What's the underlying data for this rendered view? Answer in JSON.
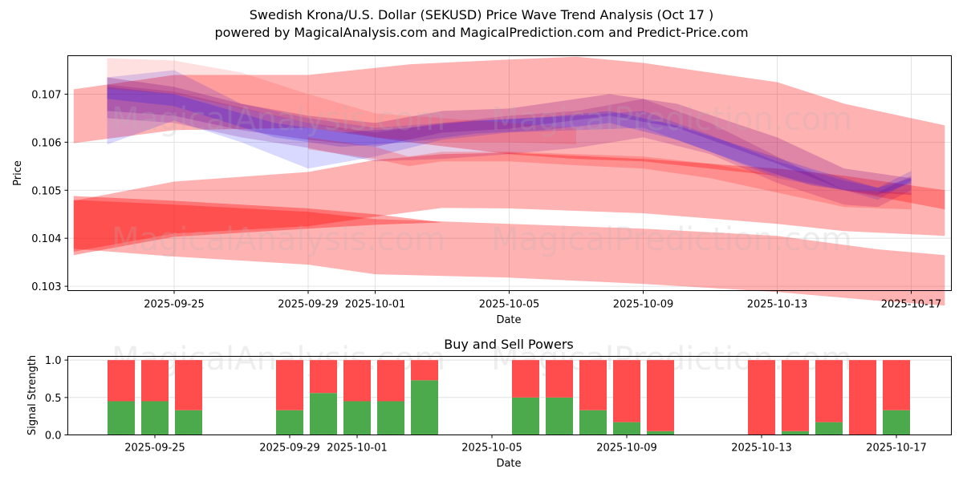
{
  "header": {
    "title": "Swedish Krona/U.S. Dollar (SEKUSD) Price Wave Trend Analysis (Oct 17 )",
    "subtitle": "powered by MagicalAnalysis.com and MagicalPrediction.com and Predict-Price.com"
  },
  "watermarks": [
    "MagicalAnalysis.com",
    "MagicalPrediction.com"
  ],
  "colors": {
    "band_red": "#ff0000",
    "band_blue": "#0000ff",
    "band_purple": "#800080",
    "buy": "#4caa4c",
    "sell": "#ff4c4c",
    "grid": "#dcdcdc"
  },
  "chart_data": [
    {
      "type": "area",
      "title": "Price Wave Trend",
      "xlabel": "Date",
      "ylabel": "Price",
      "ylim": [
        0.10291,
        0.1078
      ],
      "xlim": [
        "2025-09-21",
        "2025-10-18"
      ],
      "yticks": [
        0.103,
        0.104,
        0.105,
        0.106,
        0.107
      ],
      "ytick_labels": [
        "0.103",
        "0.104",
        "0.105",
        "0.106",
        "0.107"
      ],
      "xticks": [
        "2025-09-25",
        "2025-09-29",
        "2025-10-01",
        "2025-10-05",
        "2025-10-09",
        "2025-10-13",
        "2025-10-17"
      ],
      "grid": true,
      "bands": [
        {
          "name": "upper-wide-band",
          "color": "red",
          "opacity": 0.3,
          "x": [
            "2025-09-22",
            "2025-09-25",
            "2025-09-29",
            "2025-10-02",
            "2025-10-05",
            "2025-10-07",
            "2025-10-09",
            "2025-10-13",
            "2025-10-15",
            "2025-10-18"
          ],
          "upper": [
            0.1071,
            0.1074,
            0.1074,
            0.10762,
            0.10772,
            0.10778,
            0.10765,
            0.10725,
            0.1068,
            0.10635
          ],
          "lower": [
            0.10598,
            0.10625,
            0.1063,
            0.106,
            0.10575,
            0.10565,
            0.1056,
            0.1053,
            0.105,
            0.1046
          ]
        },
        {
          "name": "mid-wide-band",
          "color": "red",
          "opacity": 0.3,
          "x": [
            "2025-09-22",
            "2025-09-25",
            "2025-09-29",
            "2025-10-01",
            "2025-10-03",
            "2025-10-05",
            "2025-10-09",
            "2025-10-13",
            "2025-10-15",
            "2025-10-18"
          ],
          "upper": [
            0.10478,
            0.10518,
            0.10538,
            0.10563,
            0.10575,
            0.10578,
            0.10565,
            0.10545,
            0.1053,
            0.105
          ],
          "lower": [
            0.10372,
            0.1041,
            0.10425,
            0.10445,
            0.10463,
            0.10462,
            0.10452,
            0.1043,
            0.10415,
            0.10405
          ]
        },
        {
          "name": "lower-wide-band",
          "color": "red",
          "opacity": 0.3,
          "x": [
            "2025-09-22",
            "2025-09-25",
            "2025-09-29",
            "2025-10-01",
            "2025-10-05",
            "2025-10-09",
            "2025-10-13",
            "2025-10-16",
            "2025-10-18"
          ],
          "upper": [
            0.1048,
            0.1047,
            0.10455,
            0.1044,
            0.1043,
            0.1042,
            0.10405,
            0.10377,
            0.10365
          ],
          "lower": [
            0.10378,
            0.10362,
            0.10345,
            0.10325,
            0.10318,
            0.10305,
            0.10288,
            0.1027,
            0.1026
          ]
        },
        {
          "name": "left-dark-wedge",
          "color": "red",
          "opacity": 0.35,
          "x": [
            "2025-09-22",
            "2025-09-25",
            "2025-09-29",
            "2025-10-01",
            "2025-10-03"
          ],
          "upper": [
            0.10488,
            0.10478,
            0.10462,
            0.1045,
            0.10433
          ],
          "lower": [
            0.10365,
            0.10403,
            0.1042,
            0.10428,
            0.10433
          ]
        },
        {
          "name": "purple-wave-1",
          "color": "purple",
          "opacity": 0.25,
          "x": [
            "2025-09-23",
            "2025-09-25",
            "2025-09-27",
            "2025-09-29",
            "2025-10-01",
            "2025-10-03",
            "2025-10-05",
            "2025-10-08",
            "2025-10-10",
            "2025-10-13",
            "2025-10-15",
            "2025-10-17"
          ],
          "upper": [
            0.10735,
            0.10715,
            0.1068,
            0.10655,
            0.1064,
            0.10665,
            0.1067,
            0.107,
            0.1068,
            0.1061,
            0.10545,
            0.10525
          ],
          "lower": [
            0.10665,
            0.10655,
            0.10625,
            0.10605,
            0.1059,
            0.1062,
            0.10628,
            0.10655,
            0.1063,
            0.10555,
            0.105,
            0.1049
          ]
        },
        {
          "name": "purple-wave-2",
          "color": "purple",
          "opacity": 0.2,
          "x": [
            "2025-09-23",
            "2025-09-25",
            "2025-09-27",
            "2025-09-29",
            "2025-10-01",
            "2025-10-03",
            "2025-10-05",
            "2025-10-07",
            "2025-10-09",
            "2025-10-11",
            "2025-10-13",
            "2025-10-15",
            "2025-10-16",
            "2025-10-17"
          ],
          "upper": [
            0.1072,
            0.10705,
            0.10672,
            0.1064,
            0.1062,
            0.1064,
            0.10655,
            0.10665,
            0.1069,
            0.1064,
            0.1057,
            0.105,
            0.10495,
            0.1053
          ],
          "lower": [
            0.1065,
            0.1064,
            0.1061,
            0.10588,
            0.1056,
            0.10565,
            0.10575,
            0.10588,
            0.1061,
            0.10575,
            0.10515,
            0.1047,
            0.10465,
            0.105
          ]
        },
        {
          "name": "blue-wave-1",
          "color": "blue",
          "opacity": 0.15,
          "x": [
            "2025-09-23",
            "2025-09-25",
            "2025-09-27",
            "2025-09-29",
            "2025-10-01",
            "2025-10-03",
            "2025-10-05",
            "2025-10-07",
            "2025-10-09",
            "2025-10-11",
            "2025-10-13",
            "2025-10-15",
            "2025-10-16",
            "2025-10-17"
          ],
          "upper": [
            0.10735,
            0.1075,
            0.1068,
            0.1065,
            0.1063,
            0.1064,
            0.10648,
            0.10655,
            0.10665,
            0.10615,
            0.1056,
            0.1052,
            0.10505,
            0.1054
          ],
          "lower": [
            0.10595,
            0.10645,
            0.106,
            0.10545,
            0.1057,
            0.10605,
            0.1062,
            0.10625,
            0.1063,
            0.1058,
            0.10525,
            0.105,
            0.1048,
            0.1052
          ]
        },
        {
          "name": "blue-wave-2",
          "color": "blue",
          "opacity": 0.18,
          "x": [
            "2025-09-23",
            "2025-09-25",
            "2025-09-28",
            "2025-09-30",
            "2025-10-02",
            "2025-10-04",
            "2025-10-06",
            "2025-10-08",
            "2025-10-10",
            "2025-10-12",
            "2025-10-14",
            "2025-10-16",
            "2025-10-17"
          ],
          "upper": [
            0.10715,
            0.107,
            0.1064,
            0.1062,
            0.1063,
            0.10645,
            0.10652,
            0.10665,
            0.10635,
            0.1059,
            0.10545,
            0.10505,
            0.10525
          ],
          "lower": [
            0.1069,
            0.10675,
            0.1061,
            0.1059,
            0.106,
            0.10618,
            0.10625,
            0.1064,
            0.10605,
            0.10555,
            0.1051,
            0.1049,
            0.10515
          ]
        },
        {
          "name": "red-wave-mid",
          "color": "red",
          "opacity": 0.2,
          "x": [
            "2025-09-29",
            "2025-10-01",
            "2025-10-02",
            "2025-10-03",
            "2025-10-05",
            "2025-10-07",
            "2025-10-09",
            "2025-10-11",
            "2025-10-13",
            "2025-10-15",
            "2025-10-17"
          ],
          "upper": [
            0.1061,
            0.1059,
            0.1057,
            0.1058,
            0.1058,
            0.10575,
            0.1057,
            0.10555,
            0.1053,
            0.105,
            0.10495
          ],
          "lower": [
            0.10585,
            0.10565,
            0.1055,
            0.1056,
            0.1056,
            0.10552,
            0.10545,
            0.10525,
            0.10495,
            0.10465,
            0.1046
          ]
        },
        {
          "name": "pink-wave-top",
          "color": "red",
          "opacity": 0.12,
          "x": [
            "2025-09-23",
            "2025-09-25",
            "2025-09-27",
            "2025-09-29",
            "2025-10-01",
            "2025-10-03",
            "2025-10-05",
            "2025-10-07"
          ],
          "upper": [
            0.10775,
            0.1077,
            0.10745,
            0.107,
            0.1066,
            0.1065,
            0.1064,
            0.1063
          ],
          "lower": [
            0.1071,
            0.107,
            0.1067,
            0.1064,
            0.1061,
            0.106,
            0.106,
            0.10595
          ]
        }
      ]
    },
    {
      "type": "bar",
      "title": "Buy and Sell Powers",
      "xlabel": "Date",
      "ylabel": "Signal Strength",
      "ylim": [
        0,
        1.05
      ],
      "yticks": [
        0.0,
        0.5,
        1.0
      ],
      "ytick_labels": [
        "0.0",
        "0.5",
        "1.0"
      ],
      "xticks": [
        "2025-09-25",
        "2025-09-29",
        "2025-10-01",
        "2025-10-05",
        "2025-10-09",
        "2025-10-13",
        "2025-10-17"
      ],
      "grid": true,
      "categories": [
        "2025-09-24",
        "2025-09-25",
        "2025-09-26",
        "2025-09-29",
        "2025-09-30",
        "2025-10-01",
        "2025-10-02",
        "2025-10-03",
        "2025-10-06",
        "2025-10-07",
        "2025-10-08",
        "2025-10-09",
        "2025-10-10",
        "2025-10-13",
        "2025-10-14",
        "2025-10-15",
        "2025-10-16",
        "2025-10-17"
      ],
      "series": [
        {
          "name": "Buy",
          "color": "green",
          "values": [
            0.45,
            0.45,
            0.33,
            0.33,
            0.56,
            0.45,
            0.45,
            0.73,
            0.5,
            0.5,
            0.33,
            0.17,
            0.05,
            0.0,
            0.05,
            0.17,
            0.0,
            0.33
          ]
        },
        {
          "name": "Sell",
          "color": "red",
          "values": [
            0.55,
            0.55,
            0.67,
            0.67,
            0.44,
            0.55,
            0.55,
            0.27,
            0.5,
            0.5,
            0.67,
            0.83,
            0.95,
            1.0,
            0.95,
            0.83,
            1.0,
            0.67
          ]
        }
      ]
    }
  ]
}
